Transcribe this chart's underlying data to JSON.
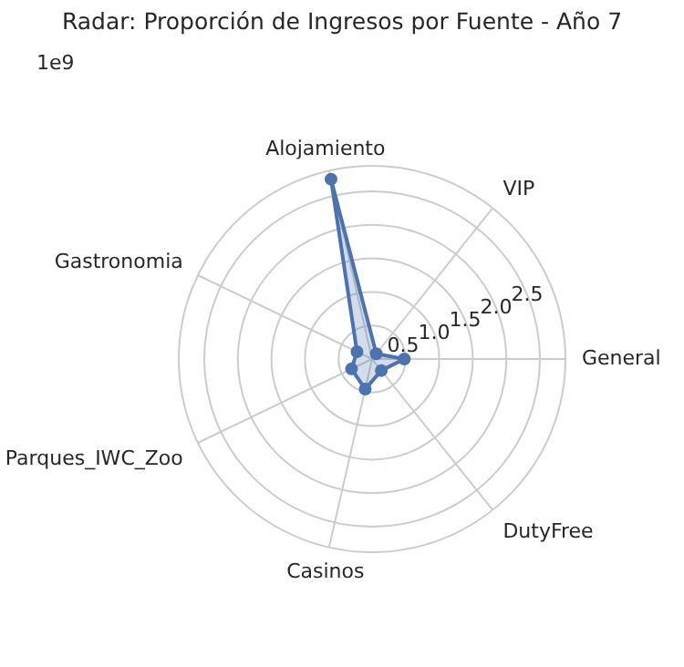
{
  "chart_data": {
    "type": "radar",
    "title": "Radar: Proporción de Ingresos por Fuente - Año 7",
    "categories": [
      "Alojamiento",
      "VIP",
      "General",
      "DutyFree",
      "Casinos",
      "Parques_IWC_Zoo",
      "Gastronomia"
    ],
    "series": [
      {
        "color": "#4c72b0",
        "values": [
          2.75,
          0.1,
          0.48,
          0.22,
          0.46,
          0.34,
          0.25
        ]
      }
    ],
    "ylim": [
      0,
      2.88
    ],
    "yticks": [
      0.5,
      {
        "value": 1,
        "label": "1.0"
      },
      1.5,
      {
        "value": 2,
        "label": "2.0"
      },
      2.5
    ],
    "annotations": [
      "1e9"
    ],
    "grid": true,
    "marker": "circle"
  }
}
